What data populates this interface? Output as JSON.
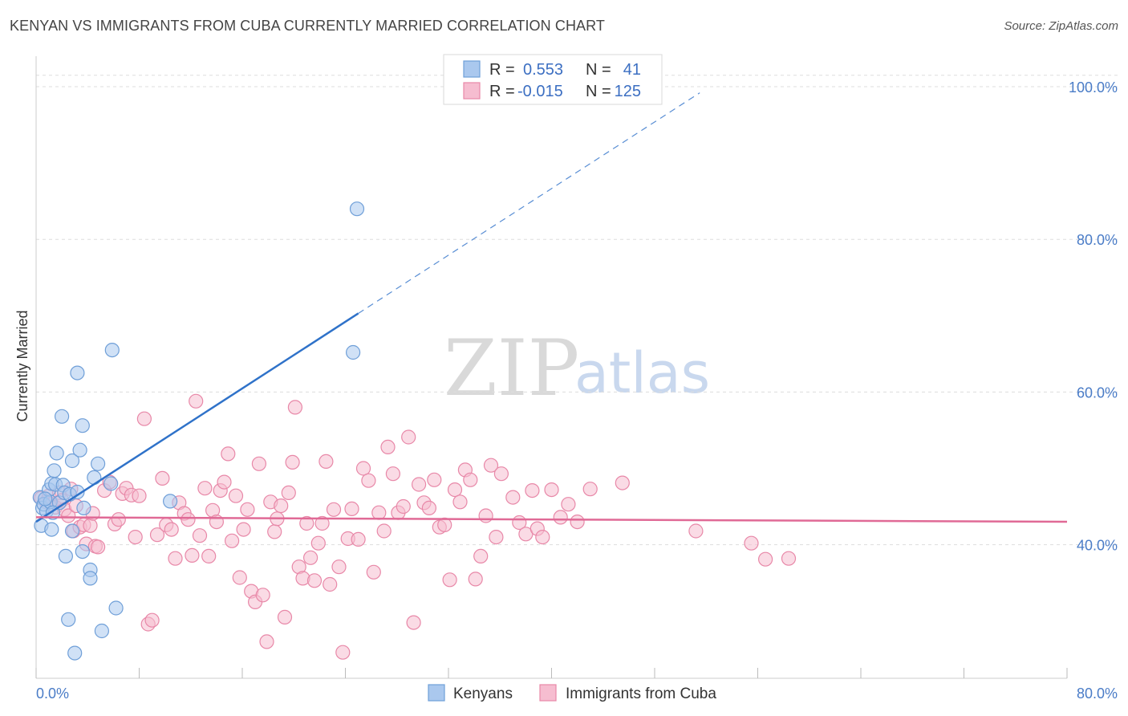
{
  "header": {
    "title": "KENYAN VS IMMIGRANTS FROM CUBA CURRENTLY MARRIED CORRELATION CHART",
    "source": "Source: ZipAtlas.com"
  },
  "watermark": {
    "zip": "ZIP",
    "atlas": "atlas"
  },
  "colors": {
    "kenyan_fill": "#aac8ee",
    "kenyan_stroke": "#6f9fd8",
    "kenyan_line": "#2f72c9",
    "cuba_fill": "#f6bdd0",
    "cuba_stroke": "#e888a8",
    "cuba_line": "#e06a96",
    "axis_label": "#4a7cc7",
    "grid": "#dddddd"
  },
  "chart_data": {
    "type": "scatter",
    "xlabel": "",
    "ylabel": "Currently Married",
    "xlim": [
      0,
      80
    ],
    "ylim": [
      22.5,
      104
    ],
    "x_tick_labels": [
      "0.0%",
      "80.0%"
    ],
    "y_ticks": [
      40,
      60,
      80,
      100
    ],
    "y_tick_labels": [
      "40.0%",
      "60.0%",
      "80.0%",
      "100.0%"
    ],
    "grid": "horizontal dashed",
    "legend_position": "top-center",
    "stats": [
      {
        "r_label": "R =",
        "r": "0.553",
        "n_label": "N =",
        "n": "41"
      },
      {
        "r_label": "R =",
        "r": "-0.015",
        "n_label": "N =",
        "n": "125"
      }
    ],
    "series": [
      {
        "name": "Kenyans",
        "trend": {
          "x": [
            0,
            25
          ],
          "y": [
            43,
            70.3
          ],
          "dashed_to": [
            51.5,
            99.2
          ]
        },
        "points": [
          [
            0.3,
            46.2
          ],
          [
            0.5,
            44.8
          ],
          [
            0.6,
            45.3
          ],
          [
            0.8,
            44.4
          ],
          [
            1.0,
            47.2
          ],
          [
            1.1,
            45.6
          ],
          [
            0.4,
            42.5
          ],
          [
            1.2,
            48.0
          ],
          [
            1.4,
            49.7
          ],
          [
            1.5,
            47.9
          ],
          [
            1.2,
            42.0
          ],
          [
            1.6,
            52.0
          ],
          [
            1.8,
            45.5
          ],
          [
            2.0,
            56.8
          ],
          [
            2.1,
            47.8
          ],
          [
            2.2,
            46.8
          ],
          [
            2.3,
            38.5
          ],
          [
            2.5,
            30.2
          ],
          [
            2.6,
            46.6
          ],
          [
            2.8,
            41.8
          ],
          [
            2.8,
            51.0
          ],
          [
            3.0,
            25.8
          ],
          [
            3.2,
            46.9
          ],
          [
            3.2,
            62.5
          ],
          [
            3.4,
            52.4
          ],
          [
            3.6,
            39.1
          ],
          [
            3.6,
            55.6
          ],
          [
            3.7,
            44.8
          ],
          [
            4.2,
            36.7
          ],
          [
            4.2,
            35.6
          ],
          [
            4.5,
            48.8
          ],
          [
            4.8,
            50.6
          ],
          [
            5.1,
            28.7
          ],
          [
            5.8,
            48.0
          ],
          [
            5.9,
            65.5
          ],
          [
            6.2,
            31.7
          ],
          [
            10.4,
            45.7
          ],
          [
            24.6,
            65.2
          ],
          [
            24.9,
            84.0
          ],
          [
            0.7,
            46.0
          ],
          [
            1.3,
            44.2
          ]
        ]
      },
      {
        "name": "Immigrants from Cuba",
        "trend": {
          "x": [
            0,
            80
          ],
          "y": [
            43.6,
            43.0
          ]
        },
        "points": [
          [
            0.4,
            46.1
          ],
          [
            0.8,
            45.6
          ],
          [
            1.0,
            46.4
          ],
          [
            1.2,
            45.3
          ],
          [
            1.5,
            44.9
          ],
          [
            1.8,
            46.8
          ],
          [
            2.0,
            45.8
          ],
          [
            2.2,
            44.6
          ],
          [
            2.5,
            43.8
          ],
          [
            2.7,
            47.3
          ],
          [
            2.9,
            41.8
          ],
          [
            3.1,
            45.1
          ],
          [
            3.4,
            42.3
          ],
          [
            3.7,
            42.6
          ],
          [
            3.9,
            40.1
          ],
          [
            4.2,
            42.5
          ],
          [
            4.4,
            44.1
          ],
          [
            4.6,
            39.8
          ],
          [
            4.8,
            39.7
          ],
          [
            5.3,
            47.1
          ],
          [
            5.7,
            48.2
          ],
          [
            6.1,
            42.7
          ],
          [
            6.4,
            43.3
          ],
          [
            6.7,
            46.7
          ],
          [
            7.0,
            47.4
          ],
          [
            7.4,
            46.5
          ],
          [
            7.7,
            41.0
          ],
          [
            8.0,
            46.4
          ],
          [
            8.4,
            56.5
          ],
          [
            8.7,
            29.6
          ],
          [
            9.0,
            30.1
          ],
          [
            9.4,
            41.3
          ],
          [
            9.8,
            48.7
          ],
          [
            10.1,
            42.6
          ],
          [
            10.5,
            42.0
          ],
          [
            10.8,
            38.2
          ],
          [
            11.1,
            45.5
          ],
          [
            11.5,
            44.1
          ],
          [
            11.8,
            43.3
          ],
          [
            12.1,
            38.6
          ],
          [
            12.4,
            58.8
          ],
          [
            12.7,
            41.2
          ],
          [
            13.1,
            47.4
          ],
          [
            13.4,
            38.5
          ],
          [
            13.7,
            44.5
          ],
          [
            14.0,
            43.0
          ],
          [
            14.3,
            47.1
          ],
          [
            14.6,
            48.2
          ],
          [
            14.9,
            51.9
          ],
          [
            15.2,
            40.5
          ],
          [
            15.5,
            46.4
          ],
          [
            15.8,
            35.7
          ],
          [
            16.1,
            42.0
          ],
          [
            16.4,
            44.6
          ],
          [
            16.7,
            33.9
          ],
          [
            17.0,
            32.5
          ],
          [
            17.3,
            50.6
          ],
          [
            17.6,
            33.4
          ],
          [
            17.9,
            27.3
          ],
          [
            18.2,
            45.6
          ],
          [
            18.5,
            41.7
          ],
          [
            18.7,
            43.4
          ],
          [
            19.0,
            45.1
          ],
          [
            19.3,
            30.5
          ],
          [
            19.6,
            46.8
          ],
          [
            19.9,
            50.8
          ],
          [
            20.1,
            58.0
          ],
          [
            20.4,
            37.1
          ],
          [
            20.7,
            35.6
          ],
          [
            21.0,
            42.8
          ],
          [
            21.3,
            38.3
          ],
          [
            21.6,
            35.3
          ],
          [
            21.9,
            40.2
          ],
          [
            22.2,
            42.8
          ],
          [
            22.5,
            50.9
          ],
          [
            22.8,
            34.8
          ],
          [
            23.1,
            44.6
          ],
          [
            23.5,
            37.1
          ],
          [
            23.8,
            25.9
          ],
          [
            24.2,
            40.8
          ],
          [
            24.5,
            44.7
          ],
          [
            25.0,
            40.7
          ],
          [
            25.4,
            50.0
          ],
          [
            25.8,
            48.4
          ],
          [
            26.2,
            36.4
          ],
          [
            26.6,
            44.2
          ],
          [
            27.0,
            41.8
          ],
          [
            27.3,
            52.8
          ],
          [
            27.7,
            49.3
          ],
          [
            28.1,
            44.2
          ],
          [
            28.5,
            45.0
          ],
          [
            28.9,
            54.1
          ],
          [
            29.3,
            29.8
          ],
          [
            29.7,
            47.9
          ],
          [
            30.1,
            45.5
          ],
          [
            30.5,
            44.8
          ],
          [
            30.9,
            48.5
          ],
          [
            31.3,
            42.3
          ],
          [
            31.7,
            42.6
          ],
          [
            32.1,
            35.4
          ],
          [
            32.5,
            47.2
          ],
          [
            32.9,
            45.6
          ],
          [
            33.3,
            49.8
          ],
          [
            33.7,
            48.5
          ],
          [
            34.1,
            35.5
          ],
          [
            34.5,
            38.5
          ],
          [
            34.9,
            43.8
          ],
          [
            35.3,
            50.4
          ],
          [
            35.7,
            41.0
          ],
          [
            36.1,
            49.3
          ],
          [
            37.0,
            46.2
          ],
          [
            37.5,
            42.9
          ],
          [
            38.0,
            41.4
          ],
          [
            38.5,
            47.1
          ],
          [
            38.9,
            42.1
          ],
          [
            39.3,
            41.0
          ],
          [
            40.0,
            47.2
          ],
          [
            40.7,
            43.6
          ],
          [
            41.3,
            45.3
          ],
          [
            42.0,
            43.0
          ],
          [
            43.0,
            47.3
          ],
          [
            45.5,
            48.1
          ],
          [
            51.2,
            41.8
          ],
          [
            55.5,
            40.2
          ],
          [
            56.6,
            38.1
          ],
          [
            58.4,
            38.2
          ]
        ]
      }
    ]
  },
  "bottom_legend": [
    {
      "label": "Kenyans"
    },
    {
      "label": "Immigrants from Cuba"
    }
  ]
}
